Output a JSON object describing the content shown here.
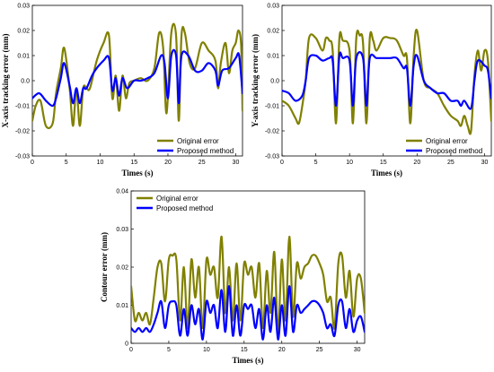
{
  "chart_data": [
    {
      "type": "line",
      "xlabel": "Times (s)",
      "ylabel": "X-axis tracking error (mm)",
      "xlim": [
        0,
        31
      ],
      "ylim": [
        -0.03,
        0.03
      ],
      "xticks": [
        "0",
        "5",
        "10",
        "15",
        "20",
        "25",
        "30"
      ],
      "yticks": [
        "-0.03",
        "-0.02",
        "-0.01",
        "0.0",
        "0.01",
        "0.02",
        "0.03"
      ],
      "legend": "bottom-right",
      "series": [
        {
          "name": "Original error",
          "color": "#808000",
          "x": [
            0,
            0.5,
            1.2,
            2,
            3,
            3.5,
            4.2,
            4.7,
            5.5,
            6,
            6.5,
            7,
            7.5,
            8,
            8.5,
            9.5,
            10.5,
            11.3,
            11.8,
            12.3,
            12.8,
            13.3,
            13.8,
            14.3,
            15,
            16,
            17,
            18,
            18.7,
            19.3,
            19.8,
            20.5,
            21.2,
            21.6,
            22,
            22.5,
            23.2,
            24,
            25,
            26,
            27,
            27.4,
            27.8,
            28.5,
            29,
            29.5,
            30,
            30.4,
            30.8,
            31
          ],
          "values": [
            -0.016,
            -0.01,
            -0.008,
            -0.018,
            -0.017,
            -0.005,
            0.005,
            0.013,
            -0.003,
            -0.018,
            -0.003,
            -0.018,
            -0.003,
            -0.003,
            -0.003,
            0.008,
            0.015,
            0.018,
            -0.007,
            0.002,
            -0.012,
            0.002,
            -0.007,
            -0.001,
            0.0,
            0.001,
            0.0,
            0.005,
            0.019,
            0.013,
            -0.013,
            0.019,
            0.018,
            -0.016,
            0.018,
            0.019,
            0.007,
            0.005,
            0.015,
            0.012,
            0.008,
            -0.003,
            0.007,
            0.015,
            0.003,
            0.012,
            0.015,
            0.02,
            0.014,
            -0.012
          ]
        },
        {
          "name": "Proposed method",
          "color": "#0000ff",
          "x": [
            0,
            1,
            2,
            3,
            3.5,
            4.2,
            4.7,
            5.5,
            6,
            6.5,
            7,
            7.5,
            8,
            9,
            10.5,
            11.3,
            11.8,
            12.3,
            12.8,
            13.3,
            14,
            15,
            16,
            17,
            18,
            19,
            19.5,
            20,
            20.5,
            21.2,
            21.6,
            22,
            23,
            24,
            25,
            26,
            27,
            27.4,
            28,
            29,
            30,
            30.5,
            31
          ],
          "values": [
            -0.007,
            -0.005,
            -0.008,
            -0.01,
            -0.007,
            0.001,
            0.007,
            -0.002,
            -0.009,
            -0.003,
            -0.009,
            -0.003,
            -0.003,
            0.003,
            0.008,
            0.009,
            -0.004,
            0.001,
            -0.006,
            0.001,
            -0.003,
            0.0,
            0.0,
            0.001,
            0.003,
            0.01,
            0.007,
            -0.007,
            0.01,
            0.01,
            -0.009,
            0.01,
            0.01,
            0.004,
            0.004,
            0.007,
            0.004,
            -0.002,
            0.004,
            0.005,
            0.009,
            0.01,
            -0.005
          ]
        }
      ]
    },
    {
      "type": "line",
      "xlabel": "Times (s)",
      "ylabel": "Y-axis tracking error (mm)",
      "xlim": [
        0,
        31
      ],
      "ylim": [
        -0.03,
        0.03
      ],
      "xticks": [
        "0",
        "5",
        "10",
        "15",
        "20",
        "25",
        "30"
      ],
      "yticks": [
        "-0.03",
        "-0.02",
        "-0.01",
        "0.0",
        "0.01",
        "0.02",
        "0.03"
      ],
      "legend": "bottom-right",
      "series": [
        {
          "name": "Original error",
          "color": "#808000",
          "x": [
            0,
            1,
            2,
            2.5,
            3,
            3.5,
            4,
            5,
            6,
            6.5,
            7,
            7.5,
            8,
            8.5,
            9,
            10,
            10.5,
            11,
            11.5,
            12,
            12.5,
            13,
            13.5,
            14,
            15,
            16,
            17,
            18,
            18.5,
            19,
            19.5,
            20,
            21,
            22,
            23,
            24,
            25,
            26,
            26.5,
            27,
            27.5,
            28,
            28.5,
            29,
            29.5,
            30,
            30.5,
            31
          ],
          "values": [
            -0.008,
            -0.01,
            -0.015,
            -0.017,
            -0.01,
            0.0,
            0.017,
            0.017,
            0.012,
            0.017,
            0.016,
            0.012,
            -0.017,
            0.017,
            0.016,
            0.012,
            -0.017,
            0.017,
            0.018,
            0.015,
            -0.017,
            0.017,
            0.016,
            0.012,
            0.017,
            0.017,
            0.016,
            0.01,
            0.009,
            -0.017,
            0.01,
            0.02,
            0.0,
            -0.003,
            -0.005,
            -0.01,
            -0.014,
            -0.016,
            -0.018,
            -0.014,
            -0.018,
            -0.02,
            0.002,
            0.012,
            0.004,
            0.012,
            0.008,
            -0.016
          ]
        },
        {
          "name": "Proposed method",
          "color": "#0000ff",
          "x": [
            0,
            1,
            2,
            3,
            3.5,
            4,
            5,
            6,
            7,
            7.5,
            8,
            8.5,
            9,
            10,
            10.5,
            11,
            12,
            12.5,
            13,
            14,
            15,
            16,
            17,
            18,
            18.5,
            19,
            19.5,
            20,
            21,
            22,
            23,
            24,
            25,
            26,
            26.5,
            27,
            28,
            28.5,
            29,
            30,
            30.5,
            31
          ],
          "values": [
            -0.004,
            -0.005,
            -0.008,
            -0.006,
            0.0,
            0.009,
            0.01,
            0.008,
            0.009,
            0.008,
            -0.01,
            0.01,
            0.009,
            0.008,
            -0.01,
            0.009,
            0.009,
            -0.01,
            0.009,
            0.009,
            0.009,
            0.009,
            0.009,
            0.005,
            0.005,
            -0.01,
            0.006,
            0.01,
            0.0,
            -0.003,
            -0.005,
            -0.005,
            -0.008,
            -0.008,
            -0.01,
            -0.008,
            -0.011,
            0.0,
            0.008,
            0.006,
            0.004,
            -0.007
          ]
        }
      ]
    },
    {
      "type": "line",
      "xlabel": "Times (s)",
      "ylabel": "Contour error (mm)",
      "xlim": [
        0,
        31
      ],
      "ylim": [
        0,
        0.04
      ],
      "xticks": [
        "0",
        "5",
        "10",
        "15",
        "20",
        "25",
        "30"
      ],
      "yticks": [
        "0",
        "0.01",
        "0.02",
        "0.03",
        "0.04"
      ],
      "legend": "top-left",
      "series": [
        {
          "name": "Original error",
          "color": "#808000",
          "x": [
            0,
            0.5,
            1,
            1.5,
            2,
            2.5,
            3,
            3.5,
            4,
            4.5,
            5,
            5.5,
            6,
            6.5,
            7,
            7.5,
            8,
            8.5,
            9,
            9.5,
            10,
            10.5,
            11,
            11.5,
            12,
            12.5,
            13,
            13.5,
            14,
            14.5,
            15,
            15.5,
            16,
            16.5,
            17,
            17.5,
            18,
            18.5,
            19,
            19.5,
            20,
            20.5,
            21,
            21.5,
            22,
            22.5,
            23,
            23.5,
            24,
            24.5,
            25,
            25.5,
            26,
            26.5,
            27,
            27.5,
            28,
            28.5,
            29,
            29.5,
            30,
            30.5,
            31
          ],
          "values": [
            0.015,
            0.006,
            0.008,
            0.006,
            0.008,
            0.005,
            0.012,
            0.02,
            0.021,
            0.011,
            0.022,
            0.023,
            0.022,
            0.006,
            0.02,
            0.004,
            0.022,
            0.012,
            0.02,
            0.004,
            0.022,
            0.018,
            0.02,
            0.012,
            0.028,
            0.008,
            0.02,
            0.006,
            0.021,
            0.006,
            0.021,
            0.018,
            0.02,
            0.012,
            0.021,
            0.004,
            0.019,
            0.008,
            0.024,
            0.003,
            0.022,
            0.006,
            0.028,
            0.007,
            0.021,
            0.017,
            0.02,
            0.021,
            0.023,
            0.023,
            0.021,
            0.018,
            0.011,
            0.012,
            0.004,
            0.021,
            0.023,
            0.012,
            0.019,
            0.007,
            0.017,
            0.017,
            0.008
          ]
        },
        {
          "name": "Proposed method",
          "color": "#0000ff",
          "x": [
            0,
            0.5,
            1,
            1.5,
            2,
            2.5,
            3,
            3.5,
            4,
            4.5,
            5,
            5.5,
            6,
            6.5,
            7,
            7.5,
            8,
            8.5,
            9,
            9.5,
            10,
            10.5,
            11,
            11.5,
            12,
            12.5,
            13,
            13.5,
            14,
            14.5,
            15,
            15.5,
            16,
            16.5,
            17,
            17.5,
            18,
            18.5,
            19,
            19.5,
            20,
            20.5,
            21,
            21.5,
            22,
            22.5,
            23,
            23.5,
            24,
            24.5,
            25,
            25.5,
            26,
            26.5,
            27,
            27.5,
            28,
            28.5,
            29,
            29.5,
            30,
            30.5,
            31
          ],
          "values": [
            0.004,
            0.003,
            0.004,
            0.003,
            0.004,
            0.003,
            0.005,
            0.008,
            0.011,
            0.004,
            0.01,
            0.011,
            0.01,
            0.002,
            0.009,
            0.002,
            0.01,
            0.005,
            0.009,
            0.001,
            0.011,
            0.008,
            0.01,
            0.004,
            0.014,
            0.003,
            0.015,
            0.002,
            0.01,
            0.002,
            0.01,
            0.009,
            0.01,
            0.004,
            0.009,
            0.001,
            0.01,
            0.003,
            0.012,
            0.001,
            0.01,
            0.002,
            0.015,
            0.003,
            0.01,
            0.008,
            0.009,
            0.01,
            0.011,
            0.011,
            0.01,
            0.008,
            0.004,
            0.005,
            0.002,
            0.01,
            0.011,
            0.004,
            0.009,
            0.003,
            0.006,
            0.007,
            0.003
          ]
        }
      ]
    }
  ]
}
